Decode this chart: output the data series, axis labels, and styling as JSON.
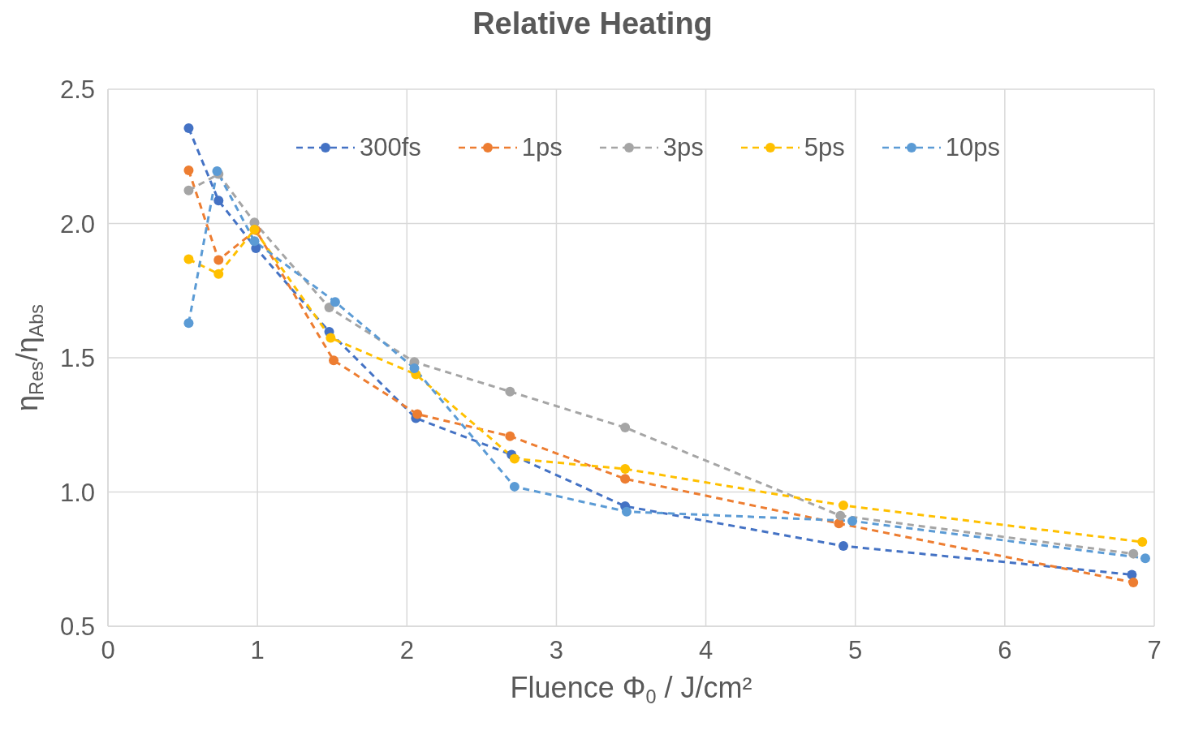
{
  "chart_data": {
    "type": "line",
    "title": "Relative Heating",
    "xlabel": "Fluence Φ$_{0}$ / J/cm²",
    "ylabel": "η$_{Res}$/η$_{Abs}$",
    "xlim": [
      0,
      7
    ],
    "xticks": [
      0,
      1,
      2,
      3,
      4,
      5,
      6,
      7
    ],
    "ylim": [
      0.5,
      2.5
    ],
    "yticks": [
      {
        "value": 0.5,
        "label": "0.5"
      },
      {
        "value": 1,
        "label": "1.0"
      },
      {
        "value": 1.5,
        "label": "1.5"
      },
      {
        "value": 2,
        "label": "2.0"
      },
      {
        "value": 2.5,
        "label": "2.5"
      }
    ],
    "grid": true,
    "legend": "top",
    "marker": "circle",
    "line_style": "dashed",
    "series": [
      {
        "name": "300fs",
        "color": "#4472c4",
        "x": [
          0.54,
          0.74,
          0.99,
          1.48,
          2.06,
          2.7,
          3.46,
          4.92,
          6.85
        ],
        "values": [
          2.355,
          2.085,
          1.908,
          1.597,
          1.275,
          1.139,
          0.947,
          0.799,
          0.692
        ]
      },
      {
        "name": "1ps",
        "color": "#ed7d31",
        "x": [
          0.54,
          0.74,
          0.99,
          1.51,
          2.07,
          2.69,
          3.46,
          4.89,
          6.86
        ],
        "values": [
          2.198,
          1.864,
          1.975,
          1.49,
          1.29,
          1.208,
          1.049,
          0.883,
          0.663
        ]
      },
      {
        "name": "3ps",
        "color": "#a5a5a5",
        "x": [
          0.54,
          0.74,
          0.98,
          1.48,
          2.05,
          2.69,
          3.46,
          4.9,
          6.86
        ],
        "values": [
          2.123,
          2.184,
          2.004,
          1.687,
          1.484,
          1.374,
          1.24,
          0.912,
          0.77
        ]
      },
      {
        "name": "5ps",
        "color": "#ffc000",
        "x": [
          0.54,
          0.74,
          0.98,
          1.49,
          2.06,
          2.72,
          3.46,
          4.92,
          6.92
        ],
        "values": [
          1.867,
          1.812,
          1.977,
          1.574,
          1.438,
          1.124,
          1.086,
          0.95,
          0.814
        ]
      },
      {
        "name": "10ps",
        "color": "#5b9bd5",
        "x": [
          0.54,
          0.73,
          0.98,
          1.52,
          2.05,
          2.72,
          3.47,
          4.98,
          6.94
        ],
        "values": [
          1.629,
          2.195,
          1.934,
          1.708,
          1.461,
          1.02,
          0.927,
          0.892,
          0.753
        ]
      }
    ]
  }
}
